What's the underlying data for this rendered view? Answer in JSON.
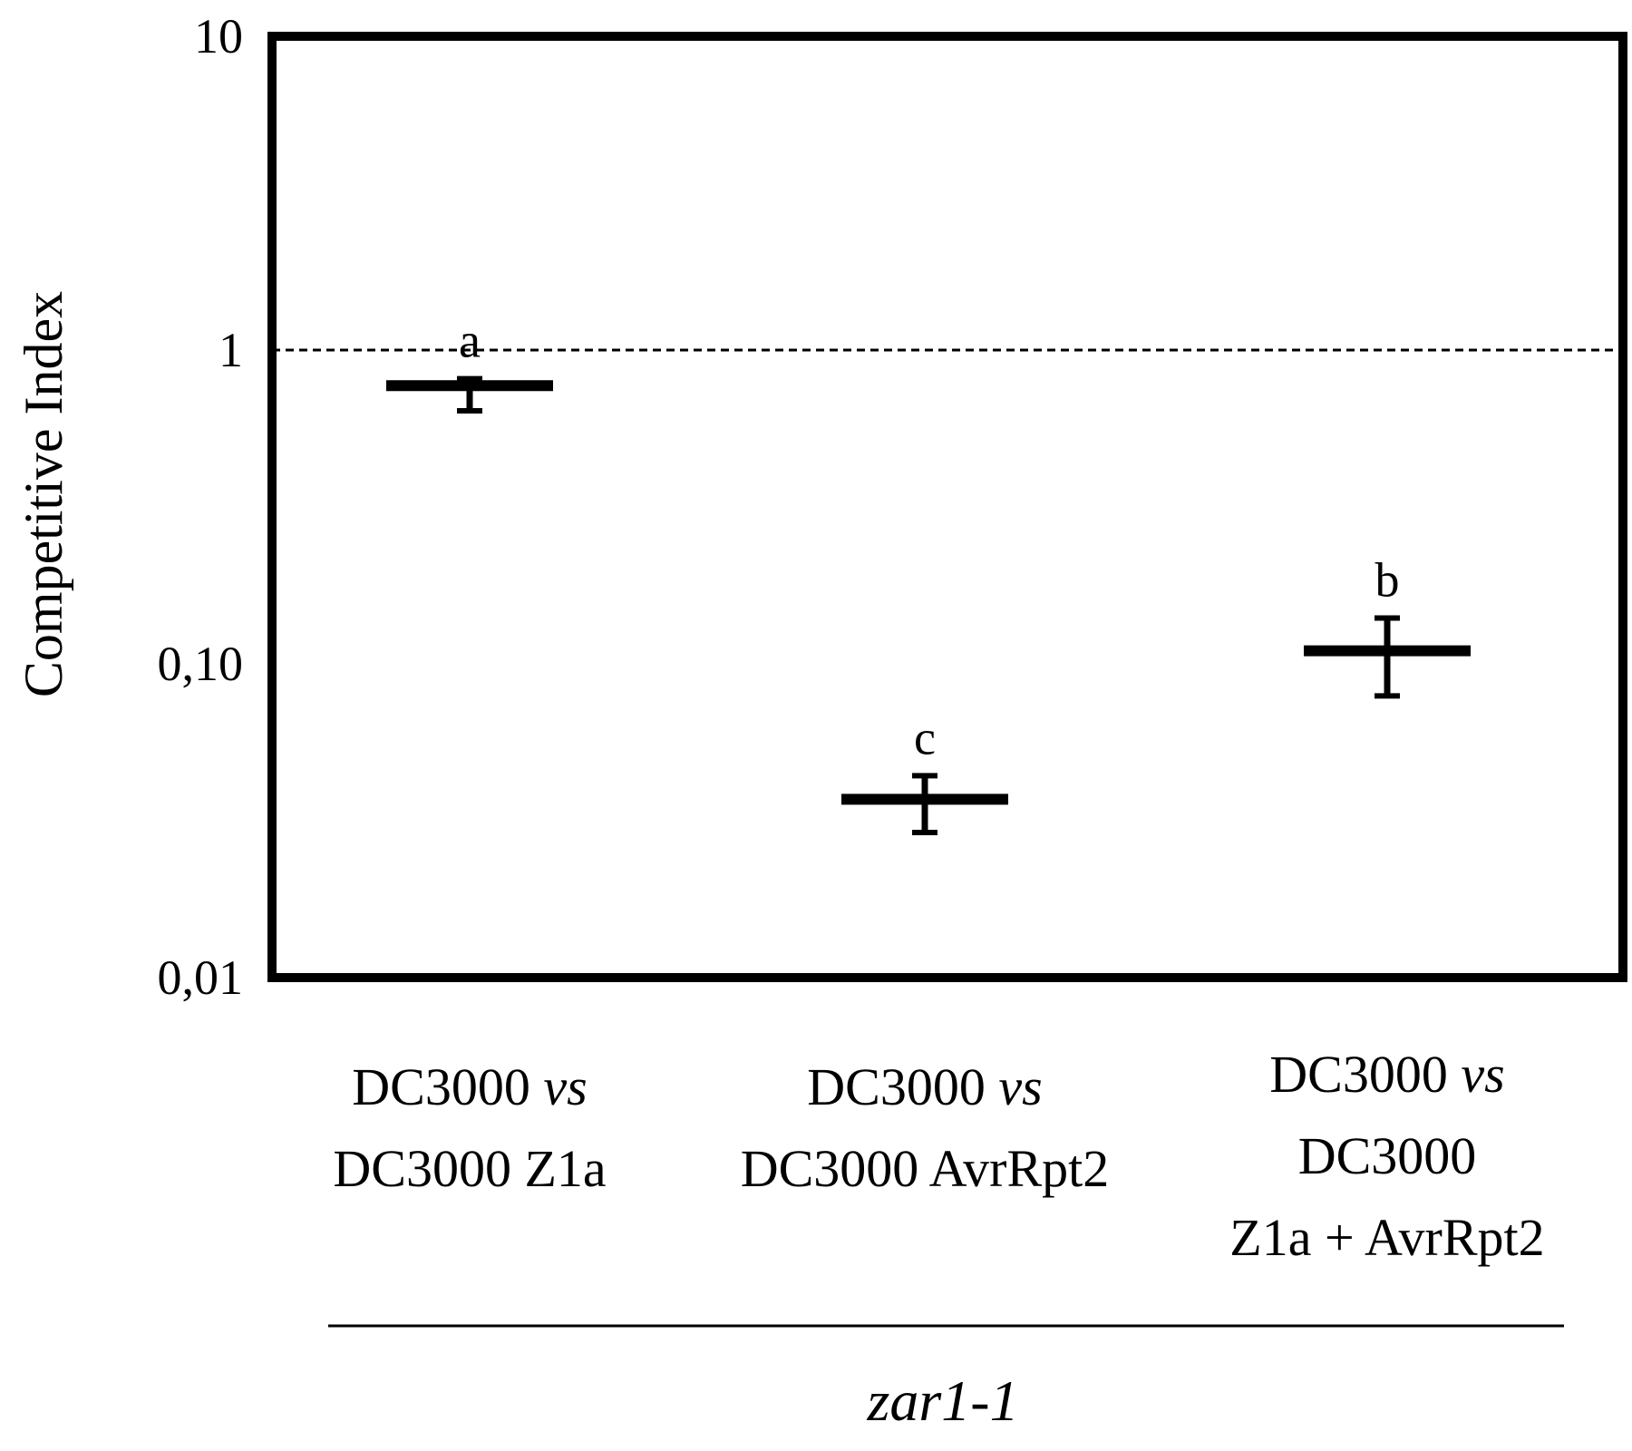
{
  "chart_data": {
    "type": "scatter",
    "ylabel": "Competitive Index",
    "yscale": "log",
    "ylim": [
      0.01,
      10
    ],
    "yticks": [
      {
        "value": 10,
        "label": "10"
      },
      {
        "value": 1,
        "label": "1"
      },
      {
        "value": 0.1,
        "label": "0,10"
      },
      {
        "value": 0.01,
        "label": "0,01"
      }
    ],
    "reference_line": {
      "value": 1,
      "style": "dashed"
    },
    "categories": [
      {
        "lines": [
          [
            "DC3000 ",
            "vs"
          ],
          [
            "DC3000 Z1a"
          ]
        ]
      },
      {
        "lines": [
          [
            "DC3000 ",
            "vs"
          ],
          [
            "DC3000 AvrRpt2"
          ]
        ]
      },
      {
        "lines": [
          [
            "DC3000 ",
            "vs"
          ],
          [
            "DC3000"
          ],
          [
            "Z1a + AvrRpt2"
          ]
        ]
      }
    ],
    "points": [
      {
        "value": 0.77,
        "err_low": 0.64,
        "err_high": 0.81,
        "letter": "a"
      },
      {
        "value": 0.037,
        "err_low": 0.029,
        "err_high": 0.044,
        "letter": "c"
      },
      {
        "value": 0.11,
        "err_low": 0.079,
        "err_high": 0.14,
        "letter": "b"
      }
    ],
    "group_label": "zar1-1",
    "grid": false,
    "legend": "none"
  }
}
